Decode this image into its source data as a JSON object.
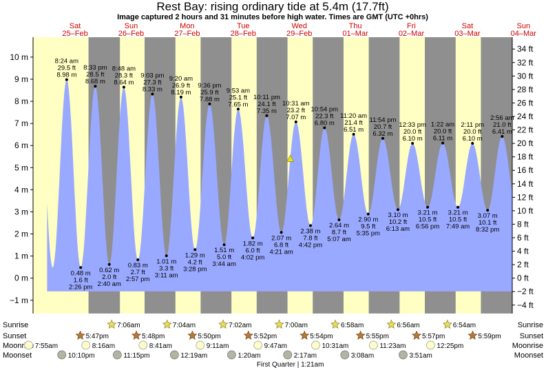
{
  "chart_data": {
    "type": "area",
    "title": "Rest Bay: rising  ordinary tide at 5.4m (17.7ft)",
    "subtitle": "Image captured 2 hours and 31 minutes before high water. Times are GMT (UTC +0hrs)",
    "days": [
      {
        "dow": "Sat",
        "date": "25–Feb"
      },
      {
        "dow": "Sun",
        "date": "26–Feb"
      },
      {
        "dow": "Mon",
        "date": "27–Feb"
      },
      {
        "dow": "Tue",
        "date": "28–Feb"
      },
      {
        "dow": "Wed",
        "date": "29–Feb"
      },
      {
        "dow": "Thu",
        "date": "01–Mar"
      },
      {
        "dow": "Fri",
        "date": "02–Mar"
      },
      {
        "dow": "Sat",
        "date": "03–Mar"
      },
      {
        "dow": "Sun",
        "date": "04–Mar"
      }
    ],
    "y_left": {
      "unit": "m",
      "ticks": [
        -1,
        0,
        1,
        2,
        3,
        4,
        5,
        6,
        7,
        8,
        9,
        10
      ],
      "labels": [
        "−1 m",
        "0 m",
        "1 m",
        "2 m",
        "3 m",
        "4 m",
        "5 m",
        "6 m",
        "7 m",
        "8 m",
        "9 m",
        "10 m"
      ]
    },
    "y_right": {
      "unit": "ft",
      "ticks": [
        -4,
        -2,
        0,
        2,
        4,
        6,
        8,
        10,
        12,
        14,
        16,
        18,
        20,
        22,
        24,
        26,
        28,
        30,
        32,
        34
      ],
      "labels": [
        "−4 ft",
        "−2 ft",
        "0 ft",
        "2 ft",
        "4 ft",
        "6 ft",
        "8 ft",
        "10 ft",
        "12 ft",
        "14 ft",
        "16 ft",
        "18 ft",
        "20 ft",
        "22 ft",
        "24 ft",
        "26 ft",
        "28 ft",
        "30 ft",
        "32 ft",
        "34 ft"
      ]
    },
    "ylim_m": [
      -1.6,
      10.9
    ],
    "x_range_days": [
      -0.25,
      8.3
    ],
    "x_unit": "days from 25-Feb 00:00 GMT",
    "data_start_day": 0.0,
    "data_end_day": 8.3,
    "data_base_m": -0.6,
    "tides": [
      {
        "type": "high",
        "day": 0.35,
        "m": 8.98,
        "ft": "29.5 ft",
        "mlabel": "8.98 m",
        "time": "8:24 am"
      },
      {
        "type": "low",
        "day": 0.6,
        "m": 0.48,
        "ft": "1.6 ft",
        "mlabel": "0.48 m",
        "time": "2:26 pm"
      },
      {
        "type": "high",
        "day": 0.86,
        "m": 8.68,
        "ft": "28.5 ft",
        "mlabel": "8.68 m",
        "time": "8:33 pm"
      },
      {
        "type": "low",
        "day": 1.11,
        "m": 0.62,
        "ft": "2.0 ft",
        "mlabel": "0.62 m",
        "time": "2:40 am"
      },
      {
        "type": "high",
        "day": 1.37,
        "m": 8.64,
        "ft": "28.3 ft",
        "mlabel": "8.64 m",
        "time": "8:48 am"
      },
      {
        "type": "low",
        "day": 1.62,
        "m": 0.83,
        "ft": "2.7 ft",
        "mlabel": "0.83 m",
        "time": "2:57 pm"
      },
      {
        "type": "high",
        "day": 1.88,
        "m": 8.33,
        "ft": "27.3 ft",
        "mlabel": "8.33 m",
        "time": "9:03 pm"
      },
      {
        "type": "low",
        "day": 2.13,
        "m": 1.01,
        "ft": "3.3 ft",
        "mlabel": "1.01 m",
        "time": "3:11 am"
      },
      {
        "type": "high",
        "day": 2.39,
        "m": 8.19,
        "ft": "26.9 ft",
        "mlabel": "8.19 m",
        "time": "9:20 am"
      },
      {
        "type": "low",
        "day": 2.64,
        "m": 1.29,
        "ft": "4.2 ft",
        "mlabel": "1.29 m",
        "time": "3:28 pm"
      },
      {
        "type": "high",
        "day": 2.9,
        "m": 7.88,
        "ft": "25.9 ft",
        "mlabel": "7.88 m",
        "time": "9:36 pm"
      },
      {
        "type": "low",
        "day": 3.16,
        "m": 1.51,
        "ft": "5.0 ft",
        "mlabel": "1.51 m",
        "time": "3:44 am"
      },
      {
        "type": "high",
        "day": 3.41,
        "m": 7.65,
        "ft": "25.1 ft",
        "mlabel": "7.65 m",
        "time": "9:53 am"
      },
      {
        "type": "low",
        "day": 3.67,
        "m": 1.82,
        "ft": "6.0 ft",
        "mlabel": "1.82 m",
        "time": "4:02 pm"
      },
      {
        "type": "high",
        "day": 3.92,
        "m": 7.35,
        "ft": "24.1 ft",
        "mlabel": "7.35 m",
        "time": "10:11 pm"
      },
      {
        "type": "low",
        "day": 4.18,
        "m": 2.07,
        "ft": "6.8 ft",
        "mlabel": "2.07 m",
        "time": "4:21 am"
      },
      {
        "type": "high",
        "day": 4.44,
        "m": 7.07,
        "ft": "23.2 ft",
        "mlabel": "7.07 m",
        "time": "10:31 am"
      },
      {
        "type": "low",
        "day": 4.7,
        "m": 2.38,
        "ft": "7.8 ft",
        "mlabel": "2.38 m",
        "time": "4:42 pm"
      },
      {
        "type": "high",
        "day": 4.95,
        "m": 6.8,
        "ft": "22.3 ft",
        "mlabel": "6.80 m",
        "time": "10:54 pm"
      },
      {
        "type": "low",
        "day": 5.21,
        "m": 2.64,
        "ft": "8.7 ft",
        "mlabel": "2.64 m",
        "time": "5:07 am"
      },
      {
        "type": "high",
        "day": 5.47,
        "m": 6.51,
        "ft": "21.4 ft",
        "mlabel": "6.51 m",
        "time": "11:20 am"
      },
      {
        "type": "low",
        "day": 5.73,
        "m": 2.9,
        "ft": "9.5 ft",
        "mlabel": "2.90 m",
        "time": "5:35 pm"
      },
      {
        "type": "high",
        "day": 5.99,
        "m": 6.32,
        "ft": "20.7 ft",
        "mlabel": "6.32 m",
        "time": "11:54 pm"
      },
      {
        "type": "low",
        "day": 6.26,
        "m": 3.1,
        "ft": "10.2 ft",
        "mlabel": "3.10 m",
        "time": "6:13 am"
      },
      {
        "type": "high",
        "day": 6.52,
        "m": 6.1,
        "ft": "20.0 ft",
        "mlabel": "6.10 m",
        "time": "12:33 pm"
      },
      {
        "type": "low",
        "day": 6.79,
        "m": 3.21,
        "ft": "10.5 ft",
        "mlabel": "3.21 m",
        "time": "6:56 pm"
      },
      {
        "type": "high",
        "day": 7.06,
        "m": 6.11,
        "ft": "20.0 ft",
        "mlabel": "6.11 m",
        "time": "1:22 am"
      },
      {
        "type": "low",
        "day": 7.33,
        "m": 3.21,
        "ft": "10.5 ft",
        "mlabel": "3.21 m",
        "time": "7:49 am"
      },
      {
        "type": "high",
        "day": 7.59,
        "m": 6.1,
        "ft": "20.0 ft",
        "mlabel": "6.10 m",
        "time": "2:11 pm"
      },
      {
        "type": "low",
        "day": 7.86,
        "m": 3.07,
        "ft": "10.1 ft",
        "mlabel": "3.07 m",
        "time": "8:32 pm"
      },
      {
        "type": "high",
        "day": 8.12,
        "m": 6.41,
        "ft": "21.0 ft",
        "mlabel": "6.41 m",
        "time": "2:56 am"
      }
    ],
    "current": {
      "day": 4.34,
      "m": 5.4
    },
    "sunrise": [
      {
        "day": 1.3,
        "time": "7:06am"
      },
      {
        "day": 2.29,
        "time": "7:04am"
      },
      {
        "day": 3.29,
        "time": "7:02am"
      },
      {
        "day": 4.29,
        "time": "7:00am"
      },
      {
        "day": 5.29,
        "time": "6:58am"
      },
      {
        "day": 6.29,
        "time": "6:56am"
      },
      {
        "day": 7.29,
        "time": "6:54am"
      }
    ],
    "sunset": [
      {
        "day": 0.74,
        "time": "5:47pm"
      },
      {
        "day": 1.74,
        "time": "5:48pm"
      },
      {
        "day": 2.74,
        "time": "5:50pm"
      },
      {
        "day": 3.74,
        "time": "5:52pm"
      },
      {
        "day": 4.74,
        "time": "5:54pm"
      },
      {
        "day": 5.74,
        "time": "5:55pm"
      },
      {
        "day": 6.74,
        "time": "5:57pm"
      },
      {
        "day": 7.74,
        "time": "5:59pm"
      }
    ],
    "moonrise": [
      {
        "day": -0.18,
        "time": "7:55am"
      },
      {
        "day": 0.84,
        "time": "8:16am"
      },
      {
        "day": 1.86,
        "time": "8:41am"
      },
      {
        "day": 2.88,
        "time": "9:11am"
      },
      {
        "day": 3.91,
        "time": "9:47am"
      },
      {
        "day": 4.94,
        "time": "10:31am"
      },
      {
        "day": 5.97,
        "time": "11:23am"
      },
      {
        "day": 6.99,
        "time": "12:25pm"
      }
    ],
    "moonset": [
      {
        "day": 0.41,
        "time": "10:10pm"
      },
      {
        "day": 1.4,
        "time": "11:15pm"
      },
      {
        "day": 2.42,
        "time": "12:19am"
      },
      {
        "day": 3.44,
        "time": "1:20am"
      },
      {
        "day": 4.44,
        "time": "2:17am"
      },
      {
        "day": 5.46,
        "time": "3:08am"
      },
      {
        "day": 6.5,
        "time": "3:51am"
      }
    ],
    "moon_phase": {
      "day": 4.34,
      "text": "First Quarter | 1:21am"
    },
    "rows": {
      "sunrise": "Sunrise",
      "sunset": "Sunset",
      "moonrise": "Moonrise",
      "moonset": "Moonset"
    },
    "colors": {
      "day_bg": "#ffffc4",
      "night_bg": "#8f8f8f",
      "water": "#99a9ff",
      "sun_icon": "#e8de58",
      "sunset_icon": "#b87838",
      "moonrise_icon": "#fcfcce",
      "moonset_icon": "#b4b4a4",
      "day_label": "#d00000",
      "current_marker": "#e8e020"
    }
  }
}
